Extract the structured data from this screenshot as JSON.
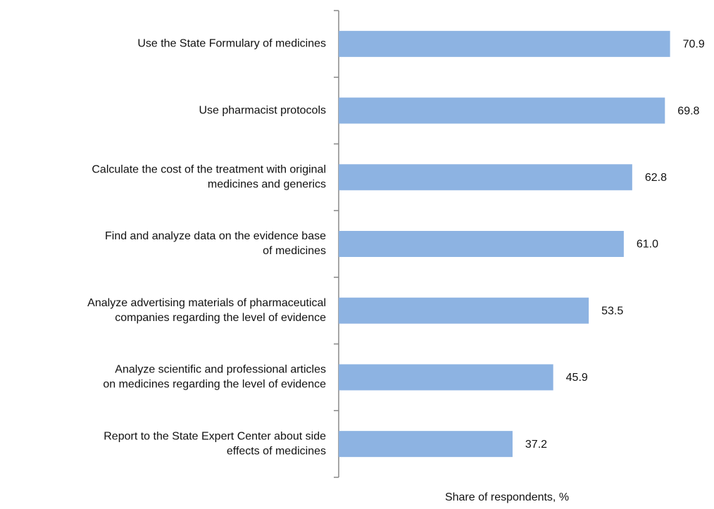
{
  "chart_data": {
    "type": "barh",
    "categories": [
      [
        "Use the State Formulary of medicines"
      ],
      [
        "Use pharmacist protocols"
      ],
      [
        "Calculate the cost of the treatment with original",
        "medicines and generics"
      ],
      [
        "Find and analyze data on the evidence base",
        "of medicines"
      ],
      [
        "Analyze advertising materials of pharmaceutical",
        "companies regarding the level of evidence"
      ],
      [
        "Analyze scientific and professional articles",
        "on medicines regarding the level of evidence"
      ],
      [
        "Report to the State Expert Center about side",
        "effects of medicines"
      ]
    ],
    "values": [
      70.9,
      69.8,
      62.8,
      61.0,
      53.5,
      45.9,
      37.2
    ],
    "value_labels": [
      "70.9",
      "69.8",
      "62.8",
      "61.0",
      "53.5",
      "45.9",
      "37.2"
    ],
    "color": "#8db3e2",
    "xlim": [
      0,
      80
    ],
    "xlabel": "Share of respondents, %"
  }
}
